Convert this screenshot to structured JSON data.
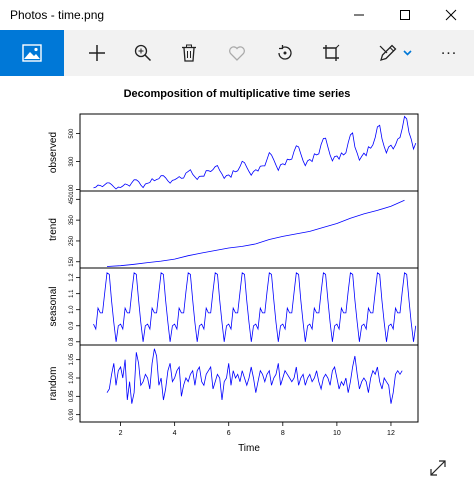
{
  "window": {
    "title": "Photos - time.png"
  },
  "toolbar": {
    "items": [
      {
        "icon": "image-icon",
        "active": true
      },
      {
        "icon": "add-icon"
      },
      {
        "icon": "zoom-in-icon"
      },
      {
        "icon": "delete-icon"
      },
      {
        "icon": "favorite-icon"
      },
      {
        "icon": "rotate-icon"
      },
      {
        "icon": "crop-icon"
      },
      {
        "icon": "edit-draw-icon"
      },
      {
        "icon": "more-icon"
      }
    ],
    "more_label": "..."
  },
  "colors": {
    "accent": "#0078d7",
    "series_line": "#0000ff"
  },
  "chart_data": {
    "type": "line",
    "title": "Decomposition of multiplicative time series",
    "xlabel": "Time",
    "x_ticks": [
      "2",
      "4",
      "6",
      "8",
      "10",
      "12"
    ],
    "xlim": [
      0.5,
      13
    ],
    "panels": [
      {
        "name": "observed",
        "ylabel": "observed",
        "y_ticks": [
          "100",
          "300",
          "500"
        ],
        "ylim": [
          90,
          640
        ],
        "x": [
          1.0,
          1.083,
          1.167,
          1.25,
          1.333,
          1.417,
          1.5,
          1.583,
          1.667,
          1.75,
          1.833,
          1.917,
          2.0,
          2.083,
          2.167,
          2.25,
          2.333,
          2.417,
          2.5,
          2.583,
          2.667,
          2.75,
          2.833,
          2.917,
          3.0,
          3.083,
          3.167,
          3.25,
          3.333,
          3.417,
          3.5,
          3.583,
          3.667,
          3.75,
          3.833,
          3.917,
          4.0,
          4.083,
          4.167,
          4.25,
          4.333,
          4.417,
          4.5,
          4.583,
          4.667,
          4.75,
          4.833,
          4.917,
          5.0,
          5.083,
          5.167,
          5.25,
          5.333,
          5.417,
          5.5,
          5.583,
          5.667,
          5.75,
          5.833,
          5.917,
          6.0,
          6.083,
          6.167,
          6.25,
          6.333,
          6.417,
          6.5,
          6.583,
          6.667,
          6.75,
          6.833,
          6.917,
          7.0,
          7.083,
          7.167,
          7.25,
          7.333,
          7.417,
          7.5,
          7.583,
          7.667,
          7.75,
          7.833,
          7.917,
          8.0,
          8.083,
          8.167,
          8.25,
          8.333,
          8.417,
          8.5,
          8.583,
          8.667,
          8.75,
          8.833,
          8.917,
          9.0,
          9.083,
          9.167,
          9.25,
          9.333,
          9.417,
          9.5,
          9.583,
          9.667,
          9.75,
          9.833,
          9.917,
          10.0,
          10.083,
          10.167,
          10.25,
          10.333,
          10.417,
          10.5,
          10.583,
          10.667,
          10.75,
          10.833,
          10.917,
          11.0,
          11.083,
          11.167,
          11.25,
          11.333,
          11.417,
          11.5,
          11.583,
          11.667,
          11.75,
          11.833,
          11.917,
          12.0,
          12.083,
          12.167,
          12.25,
          12.333,
          12.417,
          12.5,
          12.583,
          12.667,
          12.75,
          12.833,
          12.917
        ],
        "values": [
          112,
          118,
          132,
          129,
          121,
          135,
          148,
          148,
          136,
          119,
          104,
          118,
          115,
          126,
          141,
          135,
          125,
          149,
          170,
          170,
          158,
          133,
          114,
          140,
          145,
          150,
          178,
          163,
          172,
          178,
          199,
          199,
          184,
          162,
          146,
          166,
          171,
          180,
          193,
          181,
          183,
          218,
          230,
          242,
          209,
          191,
          172,
          194,
          196,
          196,
          236,
          235,
          229,
          243,
          264,
          272,
          237,
          211,
          180,
          201,
          204,
          188,
          235,
          227,
          234,
          264,
          302,
          293,
          259,
          229,
          203,
          229,
          242,
          233,
          267,
          269,
          270,
          315,
          364,
          347,
          312,
          274,
          237,
          278,
          284,
          277,
          317,
          313,
          318,
          374,
          413,
          405,
          355,
          306,
          271,
          306,
          315,
          301,
          356,
          348,
          355,
          422,
          465,
          467,
          404,
          347,
          305,
          336,
          340,
          318,
          362,
          348,
          363,
          435,
          491,
          505,
          404,
          359,
          310,
          337,
          360,
          342,
          406,
          396,
          420,
          472,
          548,
          559,
          463,
          407,
          362,
          405,
          417,
          391,
          419,
          461,
          472,
          535,
          622,
          606,
          508,
          461,
          390,
          432
        ]
      },
      {
        "name": "trend",
        "ylabel": "trend",
        "y_ticks": [
          "150",
          "250",
          "350",
          "450"
        ],
        "ylim": [
          120,
          490
        ],
        "x": [
          1.5,
          2.0,
          2.5,
          3.0,
          3.5,
          4.0,
          4.5,
          5.0,
          5.5,
          6.0,
          6.5,
          7.0,
          7.5,
          8.0,
          8.5,
          9.0,
          9.5,
          10.0,
          10.5,
          11.0,
          11.5,
          12.0,
          12.5
        ],
        "values": [
          127,
          131,
          138,
          146,
          153,
          163,
          179,
          192,
          204,
          216,
          224,
          236,
          257,
          272,
          284,
          296,
          315,
          334,
          359,
          380,
          397,
          417,
          446
        ]
      },
      {
        "name": "seasonal",
        "ylabel": "seasonal",
        "y_ticks": [
          "0.8",
          "0.9",
          "1.0",
          "1.1",
          "1.2"
        ],
        "ylim": [
          0.78,
          1.26
        ],
        "monthly_factors": [
          0.91,
          0.88,
          1.01,
          0.98,
          0.98,
          1.11,
          1.23,
          1.22,
          1.06,
          0.92,
          0.8,
          0.9
        ],
        "start": 1.0,
        "end": 12.917
      },
      {
        "name": "random",
        "ylabel": "random",
        "y_ticks": [
          "0.90",
          "0.95",
          "1.00",
          "1.05"
        ],
        "ylim": [
          0.88,
          1.09
        ],
        "x": [
          1.5,
          1.583,
          1.667,
          1.75,
          1.833,
          1.917,
          2.0,
          2.083,
          2.167,
          2.25,
          2.333,
          2.417,
          2.5,
          2.583,
          2.667,
          2.75,
          2.833,
          2.917,
          3.0,
          3.083,
          3.167,
          3.25,
          3.333,
          3.417,
          3.5,
          3.583,
          3.667,
          3.75,
          3.833,
          3.917,
          4.0,
          4.083,
          4.167,
          4.25,
          4.333,
          4.417,
          4.5,
          4.583,
          4.667,
          4.75,
          4.833,
          4.917,
          5.0,
          5.083,
          5.167,
          5.25,
          5.333,
          5.417,
          5.5,
          5.583,
          5.667,
          5.75,
          5.833,
          5.917,
          6.0,
          6.083,
          6.167,
          6.25,
          6.333,
          6.417,
          6.5,
          6.583,
          6.667,
          6.75,
          6.833,
          6.917,
          7.0,
          7.083,
          7.167,
          7.25,
          7.333,
          7.417,
          7.5,
          7.583,
          7.667,
          7.75,
          7.833,
          7.917,
          8.0,
          8.083,
          8.167,
          8.25,
          8.333,
          8.417,
          8.5,
          8.583,
          8.667,
          8.75,
          8.833,
          8.917,
          9.0,
          9.083,
          9.167,
          9.25,
          9.333,
          9.417,
          9.5,
          9.583,
          9.667,
          9.75,
          9.833,
          9.917,
          10.0,
          10.083,
          10.167,
          10.25,
          10.333,
          10.417,
          10.5,
          10.583,
          10.667,
          10.75,
          10.833,
          10.917,
          11.0,
          11.083,
          11.167,
          11.25,
          11.333,
          11.417,
          11.5,
          11.583,
          11.667,
          11.75,
          11.833,
          11.917,
          12.0,
          12.083,
          12.167,
          12.25,
          12.333,
          12.417
        ],
        "values": [
          0.96,
          0.97,
          1.01,
          1.04,
          0.98,
          1.02,
          1.03,
          1.0,
          1.05,
          0.94,
          0.99,
          0.93,
          0.96,
          1.07,
          1.04,
          0.98,
          0.99,
          1.01,
          1.0,
          0.97,
          1.04,
          1.08,
          1.06,
          0.98,
          1.0,
          0.94,
          0.97,
          1.02,
          1.04,
          0.99,
          1.0,
          1.02,
          1.03,
          0.95,
          0.98,
          1.0,
          0.99,
          1.01,
          1.02,
          0.98,
          1.02,
          1.03,
          0.99,
          0.98,
          1.01,
          1.02,
          1.03,
          0.97,
          0.99,
          1.01,
          1.0,
          0.94,
          0.99,
          1.0,
          1.04,
          0.98,
          1.02,
          1.0,
          1.01,
          0.99,
          1.02,
          1.0,
          0.98,
          1.0,
          1.03,
          1.0,
          0.96,
          0.99,
          1.02,
          1.01,
          0.99,
          1.01,
          1.02,
          0.98,
          1.0,
          1.01,
          1.04,
          0.98,
          1.0,
          1.02,
          1.01,
          1.0,
          0.99,
          1.0,
          1.03,
          0.98,
          1.0,
          1.01,
          0.98,
          1.0,
          1.01,
          0.99,
          1.0,
          1.02,
          0.99,
          0.97,
          1.0,
          1.01,
          1.0,
          0.98,
          1.02,
          1.03,
          1.0,
          0.97,
          0.99,
          0.98,
          1.0,
          0.96,
          0.99,
          1.03,
          1.06,
          1.01,
          0.97,
          0.99,
          1.0,
          0.99,
          0.96,
          1.0,
          1.02,
          1.01,
          1.03,
          0.99,
          0.97,
          1.0,
          0.99,
          0.98,
          0.93,
          0.96,
          1.01,
          1.02,
          1.01,
          1.02
        ]
      }
    ]
  }
}
